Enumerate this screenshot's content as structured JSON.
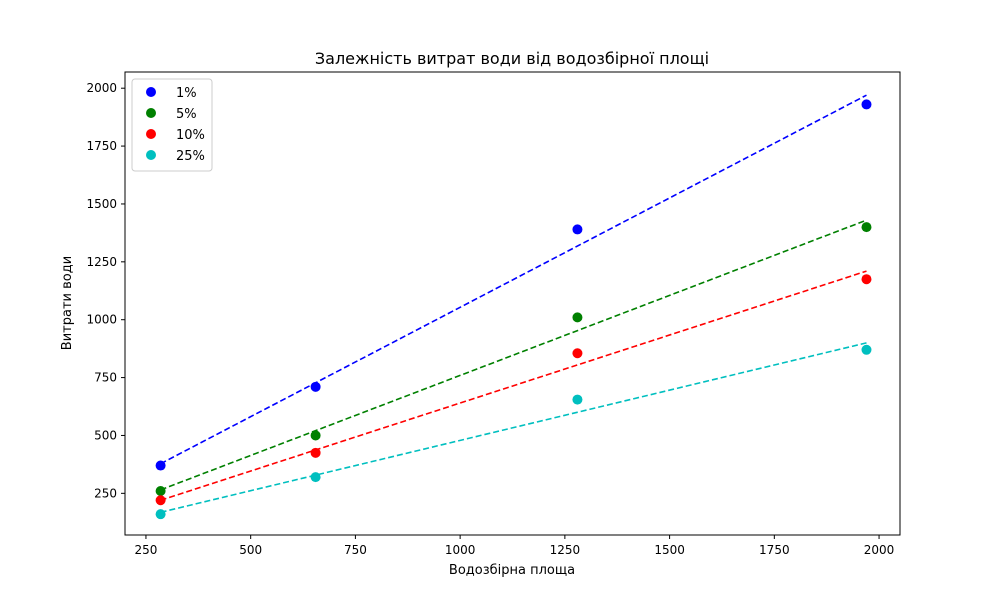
{
  "chart_data": {
    "type": "scatter",
    "title": "Залежність витрат води від водозбірної площі",
    "xlabel": "Водозбірна площа",
    "ylabel": "Витрати води",
    "xlim": [
      200,
      2050
    ],
    "ylim": [
      70,
      2070
    ],
    "xticks": [
      250,
      500,
      750,
      1000,
      1250,
      1500,
      1750,
      2000
    ],
    "yticks": [
      250,
      500,
      750,
      1000,
      1250,
      1500,
      1750,
      2000
    ],
    "grid": false,
    "legend_position": "top-left",
    "x": [
      285,
      655,
      1280,
      1970
    ],
    "series": [
      {
        "name": "1%",
        "color": "#0000ff",
        "values": [
          370,
          710,
          1390,
          1930
        ],
        "trend": [
          378,
          1970
        ]
      },
      {
        "name": "5%",
        "color": "#008000",
        "values": [
          260,
          500,
          1010,
          1400
        ],
        "trend": [
          265,
          1430
        ]
      },
      {
        "name": "10%",
        "color": "#ff0000",
        "values": [
          220,
          425,
          855,
          1175
        ],
        "trend": [
          220,
          1210
        ]
      },
      {
        "name": "25%",
        "color": "#00bfbf",
        "values": [
          160,
          320,
          655,
          870
        ],
        "trend": [
          168,
          900
        ]
      }
    ]
  }
}
